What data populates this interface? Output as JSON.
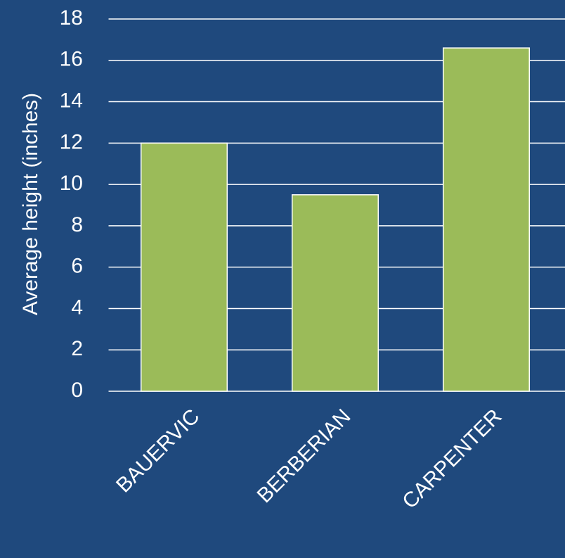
{
  "chart_data": {
    "type": "bar",
    "y_label": "Average height (inches)",
    "categories": [
      "BAUERVIC",
      "BERBERIAN",
      "CARPENTER"
    ],
    "values": [
      12,
      9.5,
      16.6
    ],
    "color": "#9bbb59",
    "ylim": [
      0,
      18
    ],
    "yticks": [
      0,
      2,
      4,
      6,
      8,
      10,
      12,
      14,
      16,
      18
    ],
    "grid": true
  }
}
